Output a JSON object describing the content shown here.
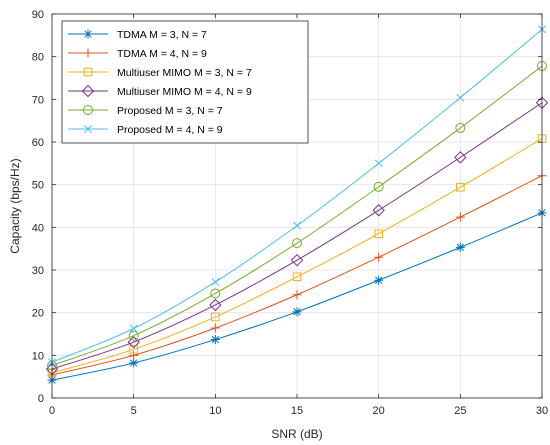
{
  "chart_data": {
    "type": "line",
    "xlabel": "SNR (dB)",
    "ylabel": "Capacity (bps/Hz)",
    "xlim": [
      0,
      30
    ],
    "ylim": [
      0,
      90
    ],
    "xticks": [
      0,
      5,
      10,
      15,
      20,
      25,
      30
    ],
    "yticks": [
      0,
      10,
      20,
      30,
      40,
      50,
      60,
      70,
      80,
      90
    ],
    "grid": true,
    "legend_position": "top-left",
    "x": [
      0,
      5,
      10,
      15,
      20,
      25,
      30
    ],
    "series": [
      {
        "name": "TDMA M = 3, N = 7",
        "color": "#0072BD",
        "marker": "asterisk",
        "values": [
          4.2,
          8.2,
          13.7,
          20.2,
          27.6,
          35.3,
          43.4
        ]
      },
      {
        "name": "TDMA M = 4, N = 9",
        "color": "#D95319",
        "marker": "plus",
        "values": [
          5.4,
          10.0,
          16.4,
          24.2,
          33.0,
          42.4,
          52.1
        ]
      },
      {
        "name": "Multiuser MIMO M = 3, N = 7",
        "color": "#EDB120",
        "marker": "square",
        "values": [
          5.9,
          11.4,
          19.0,
          28.4,
          38.5,
          49.4,
          60.8
        ]
      },
      {
        "name": "Multiuser MIMO M = 4, N = 9",
        "color": "#7E2F8E",
        "marker": "diamond",
        "values": [
          6.8,
          13.1,
          21.8,
          32.3,
          44.0,
          56.4,
          69.2
        ]
      },
      {
        "name": "Proposed M = 3, N = 7",
        "color": "#77AC30",
        "marker": "circle",
        "values": [
          7.6,
          14.6,
          24.5,
          36.3,
          49.5,
          63.3,
          77.8
        ]
      },
      {
        "name": "Proposed M = 4, N = 9",
        "color": "#4DBEEE",
        "marker": "x",
        "values": [
          8.4,
          16.3,
          27.2,
          40.4,
          55.0,
          70.4,
          86.4
        ]
      }
    ]
  }
}
